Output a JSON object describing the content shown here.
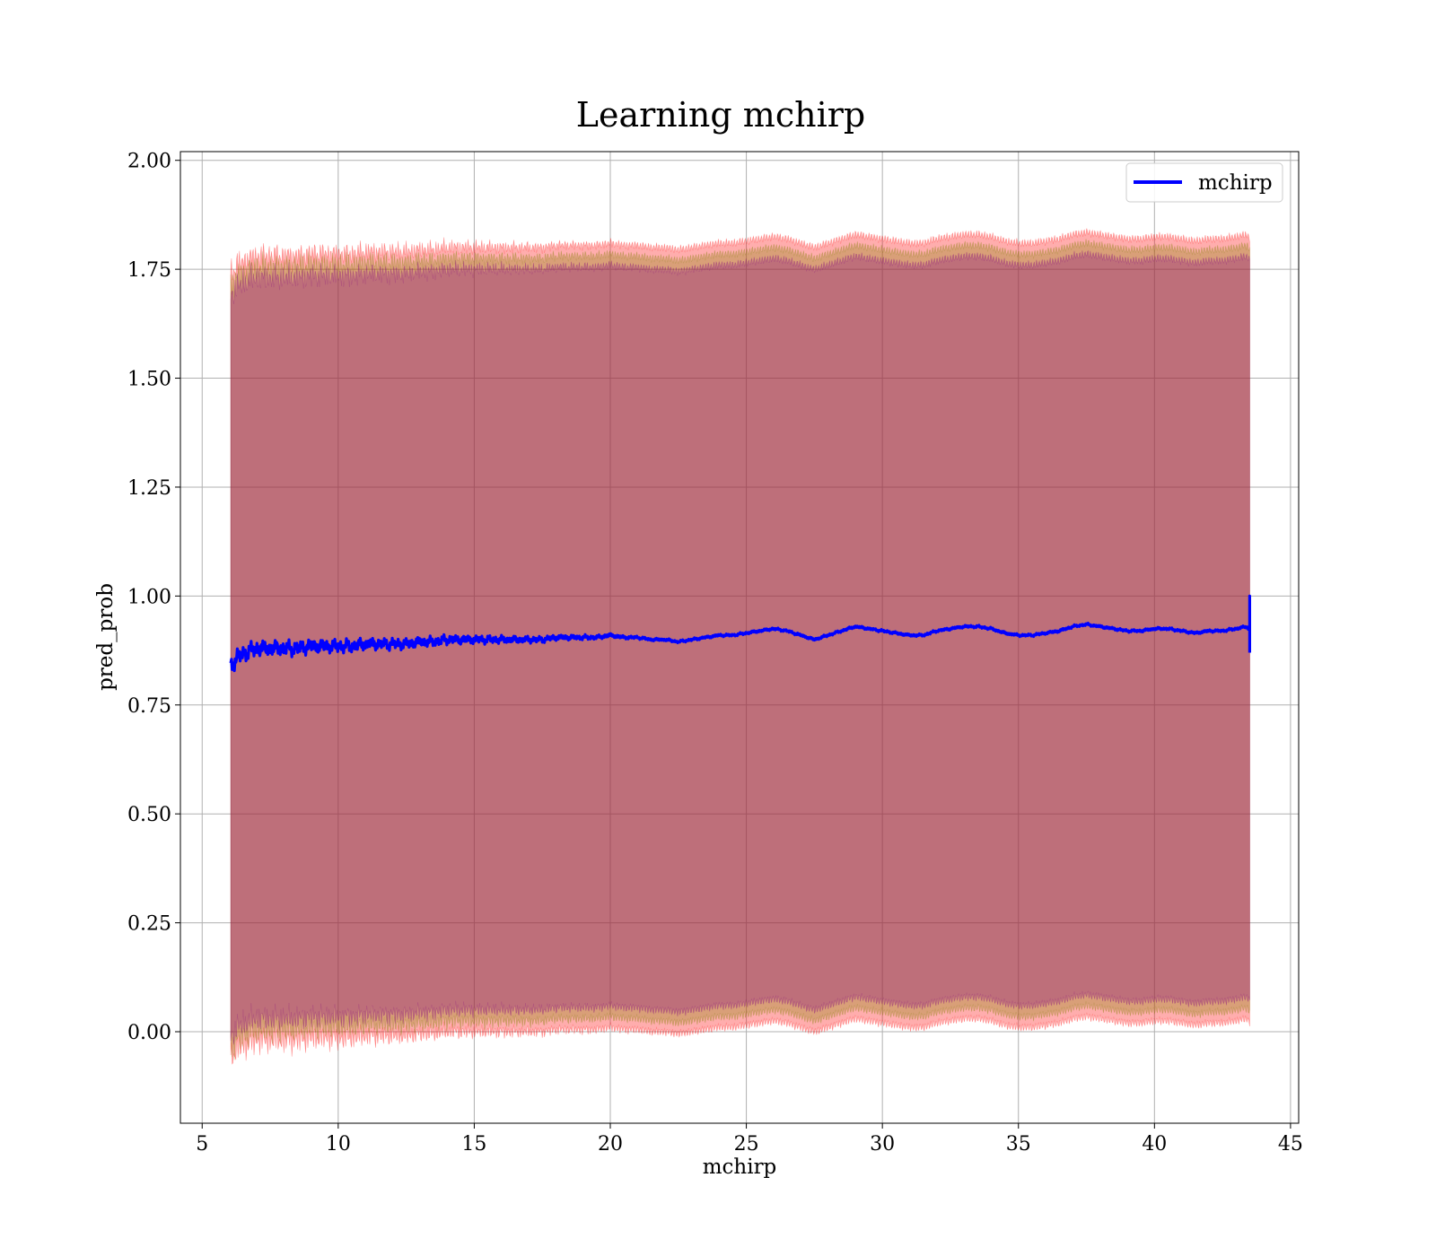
{
  "chart_data": {
    "type": "line",
    "title": "Learning mchirp",
    "xlabel": "mchirp",
    "ylabel": "pred_prob",
    "xlim": [
      4.2,
      45.3
    ],
    "ylim": [
      -0.21,
      2.02
    ],
    "x_ticks": [
      5,
      10,
      15,
      20,
      25,
      30,
      35,
      40,
      45
    ],
    "y_ticks": [
      0.0,
      0.25,
      0.5,
      0.75,
      1.0,
      1.25,
      1.5,
      1.75,
      2.0
    ],
    "x_tick_labels": [
      "5",
      "10",
      "15",
      "20",
      "25",
      "30",
      "35",
      "40",
      "45"
    ],
    "y_tick_labels": [
      "0.00",
      "0.25",
      "0.50",
      "0.75",
      "1.00",
      "1.25",
      "1.50",
      "1.75",
      "2.00"
    ],
    "grid": true,
    "legend": {
      "position": "top-right",
      "entries": [
        "mchirp"
      ]
    },
    "series": [
      {
        "name": "mchirp",
        "color": "#0000ff",
        "x": [
          6.05,
          6.3,
          6.6,
          7.0,
          7.5,
          8.0,
          8.5,
          9.0,
          9.5,
          10.0,
          10.5,
          11.0,
          11.5,
          12.0,
          12.5,
          13.0,
          13.5,
          14.0,
          14.5,
          15.0,
          15.5,
          16.0,
          16.5,
          17.0,
          17.5,
          18.0,
          18.5,
          19.0,
          19.5,
          20.0,
          20.5,
          21.0,
          21.5,
          22.0,
          22.5,
          23.0,
          23.5,
          24.0,
          24.5,
          25.0,
          25.5,
          26.0,
          26.5,
          27.0,
          27.5,
          28.0,
          28.5,
          29.0,
          29.5,
          30.0,
          30.5,
          31.0,
          31.5,
          32.0,
          32.5,
          33.0,
          33.5,
          34.0,
          34.5,
          35.0,
          35.5,
          36.0,
          36.5,
          37.0,
          37.5,
          38.0,
          38.5,
          39.0,
          39.5,
          40.0,
          40.5,
          41.0,
          41.5,
          42.0,
          42.5,
          43.0,
          43.4,
          43.5
        ],
        "y": [
          0.84,
          0.86,
          0.87,
          0.88,
          0.88,
          0.88,
          0.88,
          0.885,
          0.885,
          0.885,
          0.885,
          0.89,
          0.89,
          0.89,
          0.89,
          0.895,
          0.895,
          0.9,
          0.9,
          0.9,
          0.9,
          0.9,
          0.9,
          0.9,
          0.9,
          0.905,
          0.905,
          0.905,
          0.905,
          0.91,
          0.905,
          0.905,
          0.9,
          0.9,
          0.895,
          0.9,
          0.905,
          0.91,
          0.91,
          0.915,
          0.92,
          0.925,
          0.92,
          0.91,
          0.9,
          0.91,
          0.92,
          0.93,
          0.925,
          0.92,
          0.915,
          0.91,
          0.91,
          0.92,
          0.925,
          0.93,
          0.93,
          0.925,
          0.915,
          0.91,
          0.91,
          0.915,
          0.92,
          0.93,
          0.935,
          0.93,
          0.925,
          0.92,
          0.92,
          0.925,
          0.925,
          0.92,
          0.915,
          0.92,
          0.92,
          0.925,
          0.93,
          0.92
        ]
      }
    ],
    "bands": [
      {
        "color": "#ff0000",
        "opacity": 0.32,
        "spread": 0.9
      },
      {
        "color": "#808000",
        "opacity": 0.3,
        "spread": 0.875
      },
      {
        "color": "#800080",
        "opacity": 0.3,
        "spread": 0.85
      }
    ]
  }
}
